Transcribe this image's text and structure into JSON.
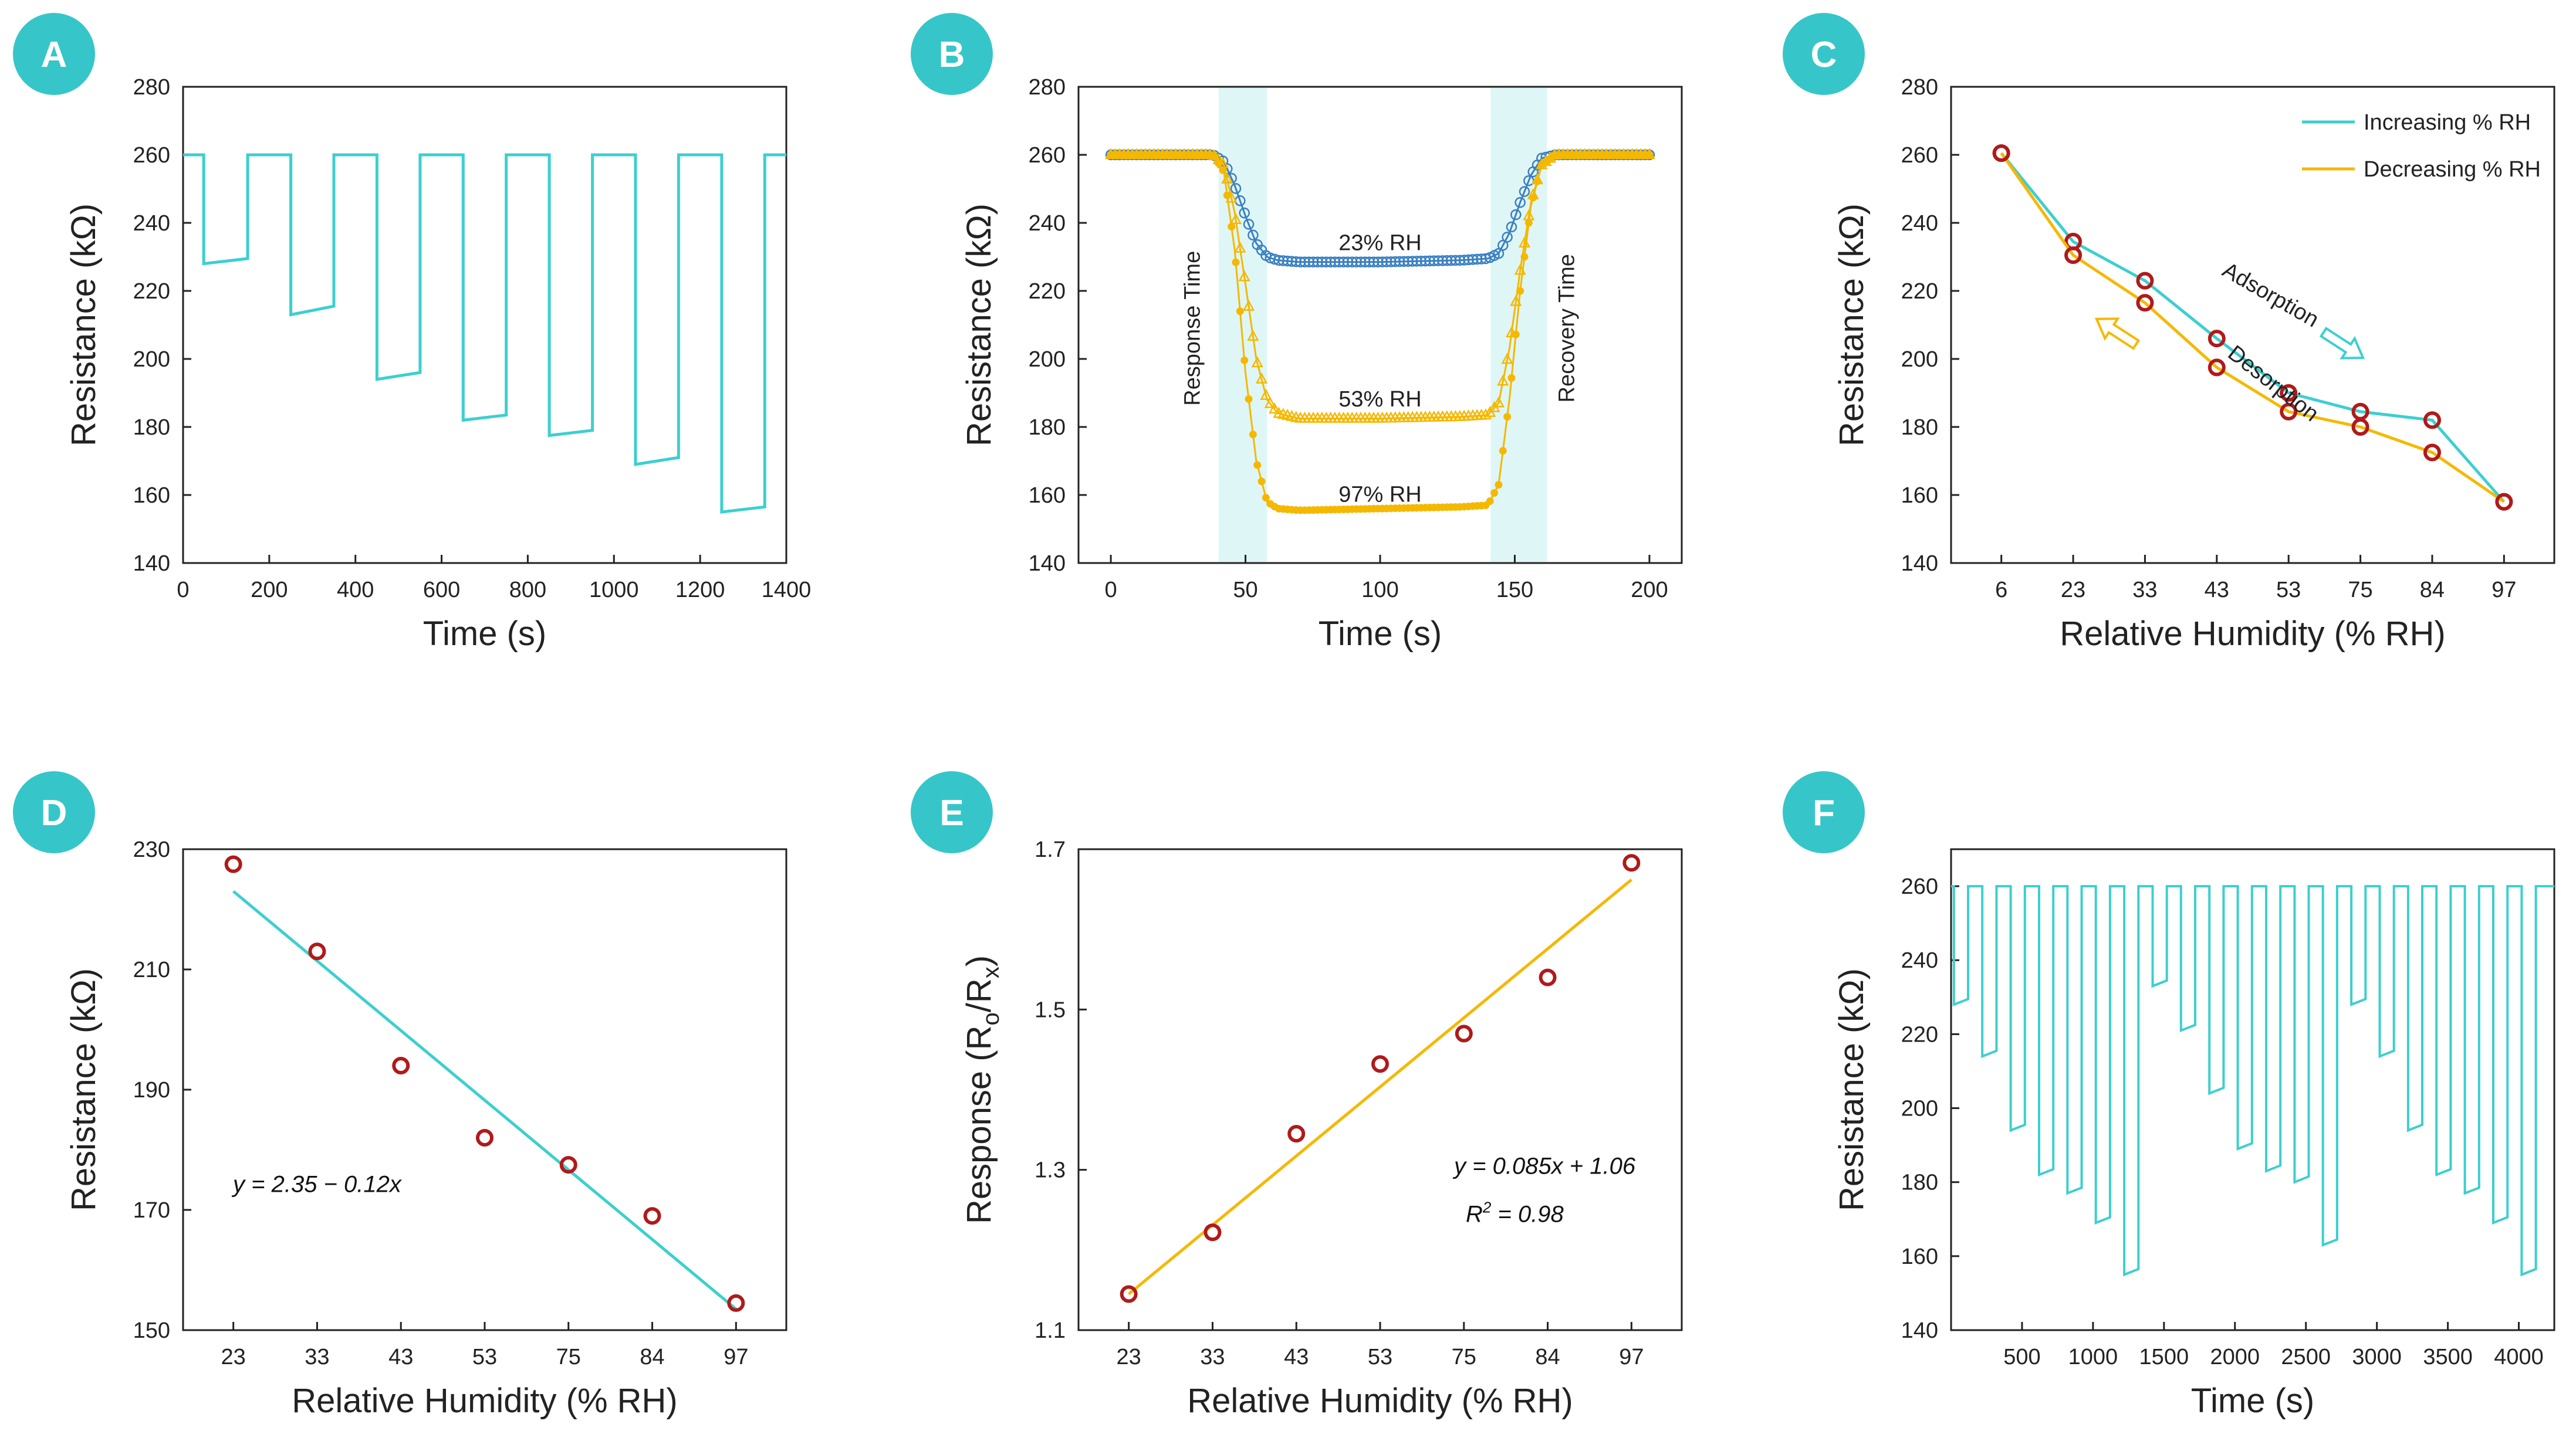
{
  "colors": {
    "cyan": "#3ccfcf",
    "gold": "#f5b800",
    "blue": "#3a7fc1",
    "marker": "#b01a1a",
    "badge": "#36c6c9",
    "band": "#dff6f7"
  },
  "chart_data": [
    {
      "id": "A",
      "type": "line",
      "badge": "A",
      "xlabel": "Time (s)",
      "ylabel": "Resistance (kΩ)",
      "xlim": [
        0,
        1400
      ],
      "ylim": [
        140,
        280
      ],
      "xticks": [
        0,
        200,
        400,
        600,
        800,
        1000,
        1200,
        1400
      ],
      "xtick_labels": [
        "0",
        "200",
        "400",
        "600",
        "800",
        "1000",
        "1200",
        "1400"
      ],
      "yticks": [
        140,
        160,
        180,
        200,
        220,
        240,
        260,
        280
      ],
      "ytick_labels": [
        "140",
        "160",
        "180",
        "200",
        "220",
        "240",
        "260",
        "280"
      ],
      "series": [
        {
          "name": "resistance",
          "color": "cyan",
          "x": [
            0,
            48,
            48,
            150,
            150,
            250,
            250,
            350,
            350,
            450,
            450,
            550,
            550,
            650,
            650,
            750,
            750,
            850,
            850,
            950,
            950,
            1050,
            1050,
            1150,
            1150,
            1250,
            1250,
            1350,
            1350,
            1400
          ],
          "y": [
            260,
            260,
            228,
            229.5,
            260,
            260,
            213,
            215.5,
            260,
            260,
            194,
            196,
            260,
            260,
            182,
            183.5,
            260,
            260,
            177.5,
            179,
            260,
            260,
            169,
            171,
            260,
            260,
            155,
            156.5,
            260,
            260
          ]
        }
      ]
    },
    {
      "id": "B",
      "type": "line",
      "badge": "B",
      "xlabel": "Time (s)",
      "ylabel": "Resistance (kΩ)",
      "xlim": [
        -12,
        212
      ],
      "ylim": [
        140,
        280
      ],
      "xticks": [
        0,
        50,
        100,
        150,
        200
      ],
      "xtick_labels": [
        "0",
        "50",
        "100",
        "150",
        "200"
      ],
      "yticks": [
        140,
        160,
        180,
        200,
        220,
        240,
        260,
        280
      ],
      "ytick_labels": [
        "140",
        "160",
        "180",
        "200",
        "220",
        "240",
        "260",
        "280"
      ],
      "bands": [
        [
          40,
          58
        ],
        [
          141,
          162
        ]
      ],
      "series": [
        {
          "name": "23% RH",
          "color": "blue",
          "marker": "circle",
          "x": [
            0,
            38,
            42,
            46,
            50,
            54,
            58,
            62,
            70,
            100,
            130,
            140,
            144,
            148,
            152,
            156,
            160,
            165,
            200
          ],
          "y": [
            260,
            260,
            258,
            251,
            242,
            234,
            230,
            229,
            228.5,
            228.5,
            229,
            229.5,
            231,
            237,
            246,
            254,
            259,
            260,
            260
          ]
        },
        {
          "name": "53% RH",
          "color": "gold",
          "marker": "triangle",
          "x": [
            0,
            38,
            42,
            46,
            50,
            54,
            58,
            62,
            70,
            100,
            130,
            140,
            144,
            148,
            152,
            156,
            160,
            165,
            200
          ],
          "y": [
            260,
            260,
            257,
            243,
            222,
            200,
            188,
            184,
            182.5,
            182.5,
            183,
            183.5,
            187,
            203,
            226,
            246,
            257,
            260,
            260
          ]
        },
        {
          "name": "97% RH",
          "color": "gold",
          "marker": "star",
          "x": [
            0,
            38,
            42,
            46,
            50,
            54,
            58,
            62,
            70,
            100,
            130,
            140,
            144,
            148,
            152,
            156,
            160,
            165,
            200
          ],
          "y": [
            260,
            260,
            255,
            232,
            196,
            170,
            158,
            156,
            155.5,
            156,
            156.5,
            157,
            163,
            188,
            220,
            245,
            257,
            260,
            260
          ]
        }
      ],
      "annotations": [
        {
          "text": "23% RH",
          "x": 100,
          "y": 232
        },
        {
          "text": "53% RH",
          "x": 100,
          "y": 186
        },
        {
          "text": "97% RH",
          "x": 100,
          "y": 158
        },
        {
          "text": "Response Time",
          "x": 33,
          "y": 209,
          "rotate": true
        },
        {
          "text": "Recovery Time",
          "x": 172,
          "y": 209,
          "rotate": true
        }
      ]
    },
    {
      "id": "C",
      "type": "line",
      "badge": "C",
      "xlabel": "Relative Humidity (% RH)",
      "ylabel": "Resistance (kΩ)",
      "xlim": [
        -0.7,
        7.7
      ],
      "ylim": [
        140,
        280
      ],
      "xticks": [
        0,
        1,
        2,
        3,
        4,
        5,
        6,
        7
      ],
      "xtick_labels": [
        "6",
        "23",
        "33",
        "43",
        "53",
        "75",
        "84",
        "97"
      ],
      "yticks": [
        140,
        160,
        180,
        200,
        220,
        240,
        260,
        280
      ],
      "ytick_labels": [
        "140",
        "160",
        "180",
        "200",
        "220",
        "240",
        "260",
        "280"
      ],
      "legend_position": "top-right",
      "series": [
        {
          "name": "Increasing % RH",
          "color": "cyan",
          "x": [
            0,
            1,
            2,
            3,
            4,
            5,
            6,
            7
          ],
          "y": [
            260.5,
            234.5,
            223,
            206,
            190,
            184.5,
            182,
            158
          ]
        },
        {
          "name": "Decreasing % RH",
          "color": "gold",
          "x": [
            0,
            1,
            2,
            3,
            4,
            5,
            6,
            7
          ],
          "y": [
            260.5,
            230.5,
            216.5,
            197.5,
            184.5,
            180,
            172.5,
            158
          ]
        }
      ],
      "annotations": [
        {
          "text": "Adsorption",
          "x": 3.7,
          "y": 217
        },
        {
          "text": "Desorption",
          "x": 2.5,
          "y": 198
        }
      ]
    },
    {
      "id": "D",
      "type": "scatter",
      "badge": "D",
      "xlabel": "Relative Humidity (% RH)",
      "ylabel": "Resistance (kΩ)",
      "xlim": [
        -0.6,
        6.6
      ],
      "ylim": [
        150,
        230
      ],
      "xticks": [
        0,
        1,
        2,
        3,
        4,
        5,
        6
      ],
      "xtick_labels": [
        "23",
        "33",
        "43",
        "53",
        "75",
        "84",
        "97"
      ],
      "yticks": [
        150,
        170,
        190,
        210,
        230
      ],
      "ytick_labels": [
        "150",
        "170",
        "190",
        "210",
        "230"
      ],
      "points": {
        "x": [
          0,
          1,
          2,
          3,
          4,
          5,
          6
        ],
        "y": [
          227.5,
          213,
          194,
          182,
          177.5,
          169,
          154.5
        ]
      },
      "fit": {
        "x": [
          0,
          6
        ],
        "y": [
          223,
          153.5
        ],
        "color": "cyan"
      },
      "equation": "y = 2.35 − 0.12x"
    },
    {
      "id": "E",
      "type": "scatter",
      "badge": "E",
      "xlabel": "Relative Humidity (% RH)",
      "ylabel_parts": {
        "main": "Response (R",
        "sub1": "o",
        "mid": "/R",
        "sub2": "x",
        "end": ")"
      },
      "xlim": [
        -0.6,
        6.6
      ],
      "ylim": [
        1.1,
        1.7
      ],
      "xticks": [
        0,
        1,
        2,
        3,
        4,
        5,
        6
      ],
      "xtick_labels": [
        "23",
        "33",
        "43",
        "53",
        "75",
        "84",
        "97"
      ],
      "yticks": [
        1.1,
        1.3,
        1.5,
        1.7
      ],
      "ytick_labels": [
        "1.1",
        "1.3",
        "1.5",
        "1.7"
      ],
      "points": {
        "x": [
          0,
          1,
          2,
          3,
          4,
          5,
          6
        ],
        "y": [
          1.145,
          1.222,
          1.345,
          1.432,
          1.47,
          1.54,
          1.683
        ]
      },
      "fit": {
        "x": [
          0,
          6
        ],
        "y": [
          1.145,
          1.662
        ],
        "color": "gold"
      },
      "equation": "y = 0.085x + 1.06",
      "r2_main": "R",
      "r2_sup": "2",
      "r2_value": " = 0.98"
    },
    {
      "id": "F",
      "type": "line",
      "badge": "F",
      "xlabel": "Time (s)",
      "ylabel": "Resistance (kΩ)",
      "xlim": [
        0,
        4250
      ],
      "ylim": [
        140,
        270
      ],
      "xticks": [
        500,
        1000,
        1500,
        2000,
        2500,
        3000,
        3500,
        4000
      ],
      "xtick_labels": [
        "500",
        "1000",
        "1500",
        "2000",
        "2500",
        "3000",
        "3500",
        "4000"
      ],
      "yticks": [
        140,
        160,
        180,
        200,
        220,
        240,
        260
      ],
      "ytick_labels": [
        "140",
        "160",
        "180",
        "200",
        "220",
        "240",
        "260"
      ],
      "cycle": {
        "start": 20,
        "period": 200,
        "low_fraction": 0.5
      },
      "levels": [
        228,
        214,
        194,
        182,
        177,
        169,
        155,
        233,
        221,
        204,
        189,
        183,
        180,
        163,
        228,
        214,
        194,
        182,
        177,
        169,
        155
      ]
    }
  ]
}
